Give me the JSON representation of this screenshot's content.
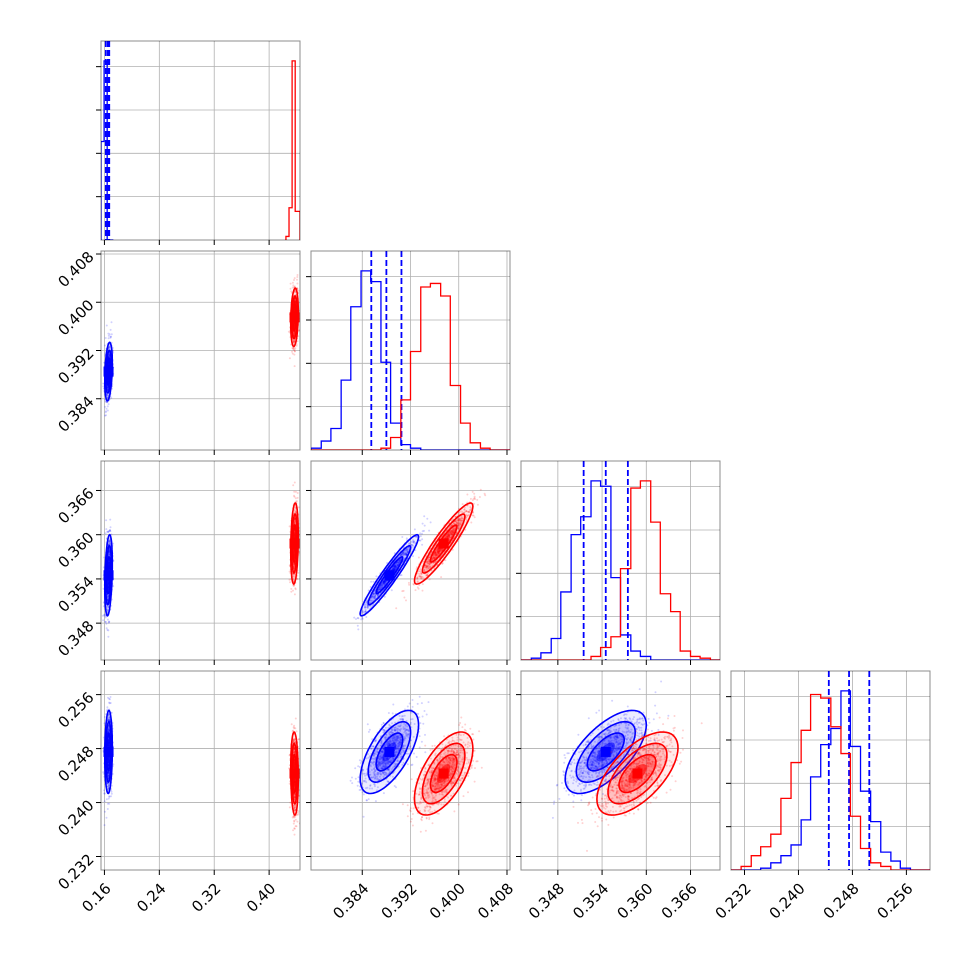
{
  "colors": {
    "blue": "#0000ff",
    "red": "#ff0000"
  },
  "chart_data": {
    "type": "corner",
    "title": "",
    "parameters": [
      {
        "name": "",
        "range": [
          0.155,
          0.445
        ],
        "ticks": [
          "0.16",
          "0.24",
          "0.32",
          "0.40"
        ],
        "tick_values": [
          0.16,
          0.24,
          0.32,
          0.4
        ]
      },
      {
        "name": "",
        "range": [
          0.3755,
          0.4085
        ],
        "ticks": [
          "0.384",
          "0.392",
          "0.400",
          "0.408"
        ],
        "tick_values": [
          0.384,
          0.392,
          0.4,
          0.408
        ]
      },
      {
        "name": "",
        "range": [
          0.343,
          0.37
        ],
        "ticks": [
          "0.348",
          "0.354",
          "0.360",
          "0.366"
        ],
        "tick_values": [
          0.348,
          0.354,
          0.36,
          0.366
        ]
      },
      {
        "name": "",
        "range": [
          0.23,
          0.2595
        ],
        "ticks": [
          "0.232",
          "0.240",
          "0.248",
          "0.256"
        ],
        "tick_values": [
          0.232,
          0.24,
          0.248,
          0.256
        ]
      }
    ],
    "series": [
      {
        "name": "",
        "color": "#0000ff",
        "mean": [
          0.166,
          0.3885,
          0.3545,
          0.2475
        ],
        "std": [
          0.0025,
          0.0022,
          0.0025,
          0.0028
        ],
        "quantiles_1d": [
          [
            0.162,
            0.165,
            0.167
          ],
          [
            0.3855,
            0.388,
            0.3905
          ],
          [
            0.3515,
            0.3545,
            0.3575
          ],
          [
            0.2445,
            0.2475,
            0.2505
          ]
        ],
        "histograms_1d": [
          {
            "edges": [
              0.155,
              0.1595,
              0.164,
              0.1685,
              0.173
            ],
            "counts": [
              0.55,
              1.0,
              0.0,
              0.0
            ]
          },
          {
            "edges": [
              0.3755,
              0.3772,
              0.3788,
              0.3805,
              0.3821,
              0.3838,
              0.3854,
              0.3871,
              0.3887,
              0.3904,
              0.392,
              0.3937,
              0.3953,
              0.397,
              0.3986,
              0.4003,
              0.4019,
              0.4036,
              0.4052,
              0.4069,
              0.4085
            ],
            "counts": [
              0.01,
              0.05,
              0.12,
              0.39,
              0.8,
              1.0,
              0.94,
              0.49,
              0.15,
              0.03,
              0.01,
              0,
              0,
              0,
              0,
              0,
              0,
              0,
              0,
              0
            ]
          },
          {
            "edges": [
              0.343,
              0.3444,
              0.3457,
              0.3471,
              0.3484,
              0.3498,
              0.3511,
              0.3525,
              0.3538,
              0.3552,
              0.3565,
              0.3579,
              0.3592,
              0.3606,
              0.3619,
              0.3633,
              0.3646,
              0.366,
              0.3673,
              0.3687,
              0.37
            ],
            "counts": [
              0,
              0.01,
              0.04,
              0.12,
              0.38,
              0.7,
              0.8,
              1.0,
              0.97,
              0.46,
              0.14,
              0.05,
              0.02,
              0,
              0,
              0,
              0,
              0,
              0,
              0
            ]
          },
          {
            "edges": [
              0.23,
              0.2315,
              0.233,
              0.2344,
              0.2359,
              0.2374,
              0.2389,
              0.2404,
              0.2418,
              0.2433,
              0.2448,
              0.2463,
              0.2477,
              0.2492,
              0.2507,
              0.2522,
              0.2537,
              0.2551,
              0.2566,
              0.2581,
              0.2595
            ],
            "counts": [
              0,
              0,
              0,
              0.01,
              0.04,
              0.08,
              0.14,
              0.28,
              0.52,
              0.7,
              0.79,
              1.0,
              0.69,
              0.44,
              0.27,
              0.1,
              0.05,
              0.01,
              0,
              0
            ]
          }
        ],
        "correlations": {
          "0-1": 0.3,
          "0-2": 0.3,
          "0-3": 0.1,
          "1-2": 0.95,
          "1-3": 0.65,
          "2-3": 0.65
        }
      },
      {
        "name": "",
        "color": "#ff0000",
        "mean": [
          0.437,
          0.3975,
          0.3588,
          0.2443
        ],
        "std": [
          0.0025,
          0.0022,
          0.0025,
          0.0028
        ],
        "quantiles_1d": null,
        "histograms_1d": [
          {
            "edges": [
              0.4245,
              0.429,
              0.4335,
              0.438,
              0.4425,
              0.445
            ],
            "counts": [
              0.02,
              0.18,
              1.0,
              0.16,
              0.16
            ]
          },
          {
            "edges": [
              0.3755,
              0.3772,
              0.3788,
              0.3805,
              0.3821,
              0.3838,
              0.3854,
              0.3871,
              0.3887,
              0.3904,
              0.392,
              0.3937,
              0.3953,
              0.397,
              0.3986,
              0.4003,
              0.4019,
              0.4036,
              0.4052,
              0.4069,
              0.4085
            ],
            "counts": [
              0,
              0,
              0,
              0,
              0,
              0,
              0,
              0.01,
              0.07,
              0.28,
              0.55,
              0.91,
              0.93,
              0.86,
              0.36,
              0.15,
              0.04,
              0.01,
              0,
              0
            ]
          },
          {
            "edges": [
              0.343,
              0.3444,
              0.3457,
              0.3471,
              0.3484,
              0.3498,
              0.3511,
              0.3525,
              0.3538,
              0.3552,
              0.3565,
              0.3579,
              0.3592,
              0.3606,
              0.3619,
              0.3633,
              0.3646,
              0.366,
              0.3673,
              0.3687,
              0.37
            ],
            "counts": [
              0,
              0,
              0,
              0,
              0,
              0,
              0,
              0.02,
              0.07,
              0.13,
              0.51,
              0.96,
              1.0,
              0.77,
              0.37,
              0.27,
              0.05,
              0.02,
              0.01,
              0
            ]
          },
          {
            "edges": [
              0.23,
              0.2315,
              0.233,
              0.2344,
              0.2359,
              0.2374,
              0.2389,
              0.2404,
              0.2418,
              0.2433,
              0.2448,
              0.2463,
              0.2477,
              0.2492,
              0.2507,
              0.2522,
              0.2537,
              0.2551,
              0.2566,
              0.2581,
              0.2595
            ],
            "counts": [
              0,
              0.02,
              0.08,
              0.13,
              0.2,
              0.4,
              0.6,
              0.78,
              0.98,
              0.96,
              0.8,
              0.65,
              0.3,
              0.12,
              0.04,
              0.02,
              0,
              0,
              0,
              0
            ]
          }
        ],
        "correlations": {
          "0-1": 0.2,
          "0-2": 0.2,
          "0-3": -0.1,
          "1-2": 0.92,
          "1-3": 0.6,
          "2-3": 0.62
        }
      }
    ],
    "grid": true,
    "legend": "none"
  }
}
